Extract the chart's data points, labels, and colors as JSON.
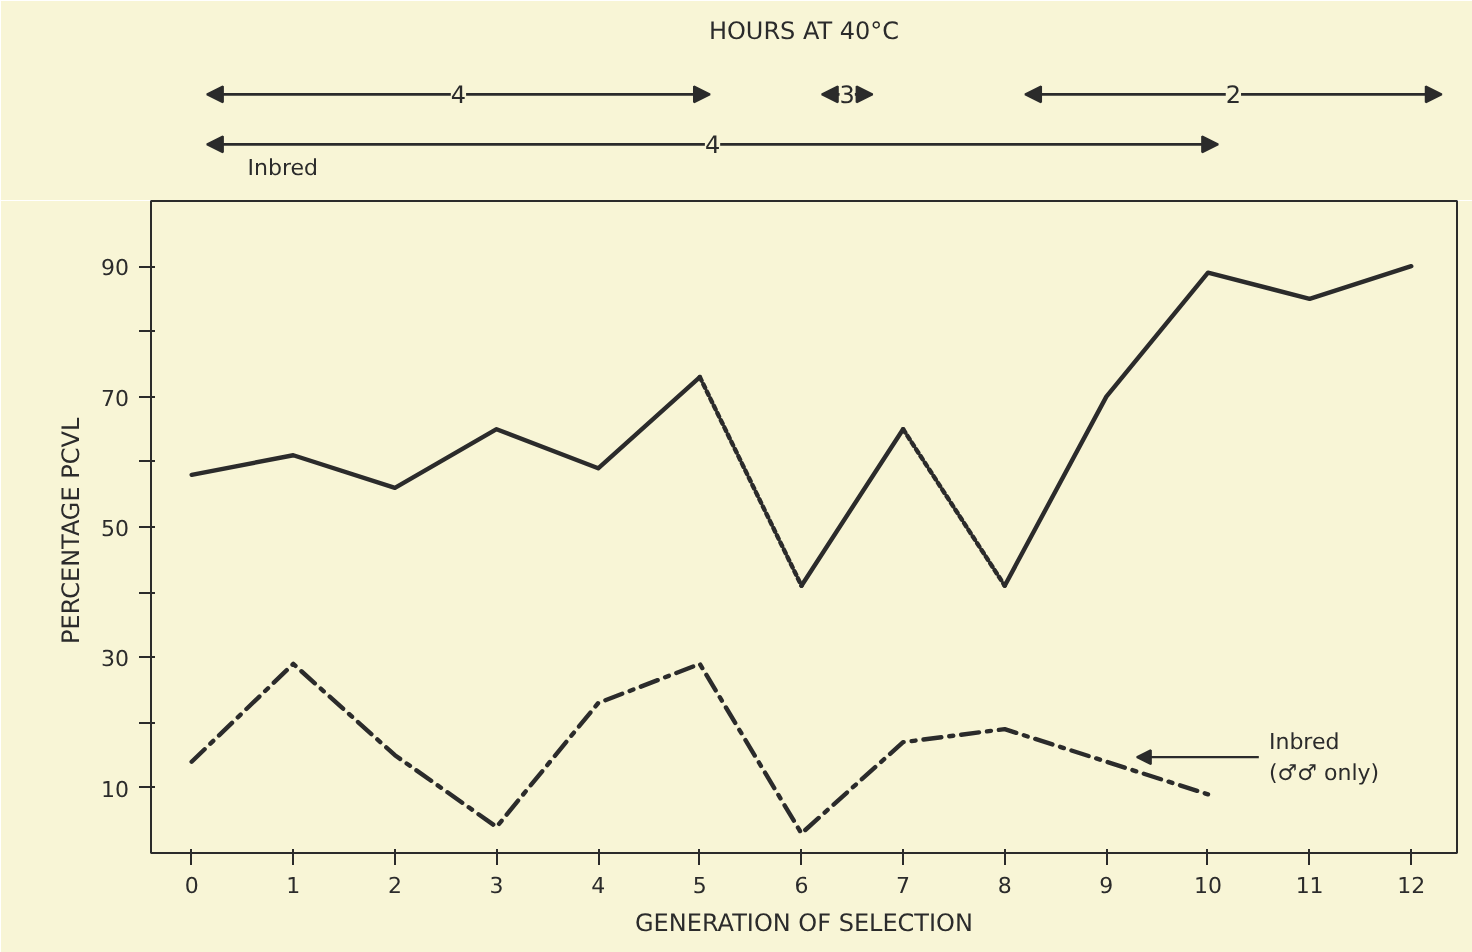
{
  "chart_data": {
    "type": "line",
    "title": "HOURS AT 40°C",
    "xlabel": "GENERATION OF SELECTION",
    "ylabel": "PERCENTAGE  PCVL",
    "xlim": [
      -0.4,
      12.45
    ],
    "xticks": [
      0,
      1,
      2,
      3,
      4,
      5,
      6,
      7,
      8,
      9,
      10,
      11,
      12
    ],
    "ylim": [
      0,
      100
    ],
    "yticks": [
      {
        "value": 10,
        "label": "10"
      },
      {
        "value": 20,
        "label": null
      },
      {
        "value": 30,
        "label": "30"
      },
      {
        "value": 40,
        "label": null
      },
      {
        "value": 50,
        "label": "50"
      },
      {
        "value": 60,
        "label": null
      },
      {
        "value": 70,
        "label": "70"
      },
      {
        "value": 80,
        "label": null
      },
      {
        "value": 90,
        "label": "90"
      }
    ],
    "series": [
      {
        "color": "#2b2b2b",
        "line_style": "solid",
        "x": [
          0,
          1,
          2,
          3,
          4,
          5
        ],
        "values": [
          58,
          61,
          56,
          65,
          59,
          73
        ]
      },
      {
        "color": "#2b2b2b",
        "line_style": "dotted",
        "x": [
          5,
          6
        ],
        "values": [
          73,
          41
        ]
      },
      {
        "color": "#2b2b2b",
        "line_style": "solid",
        "x": [
          6,
          7
        ],
        "values": [
          41,
          65
        ]
      },
      {
        "color": "#2b2b2b",
        "line_style": "dotted",
        "x": [
          7,
          8
        ],
        "values": [
          65,
          41
        ]
      },
      {
        "color": "#2b2b2b",
        "line_style": "solid",
        "x": [
          8,
          9,
          10,
          11,
          12
        ],
        "values": [
          41,
          70,
          89,
          85,
          90
        ]
      },
      {
        "color": "#2b2b2b",
        "line_style": "dashdot",
        "x": [
          0,
          1,
          2,
          3,
          4,
          5,
          6,
          7,
          8,
          9,
          10
        ],
        "values": [
          14,
          29,
          15,
          4,
          23,
          29,
          3,
          17,
          19,
          14,
          9
        ]
      }
    ],
    "annotations": [
      "4",
      "3",
      "2",
      "4",
      "Inbred",
      "Inbred\n(♂♂ only)"
    ],
    "grid": false,
    "marker": "none"
  }
}
